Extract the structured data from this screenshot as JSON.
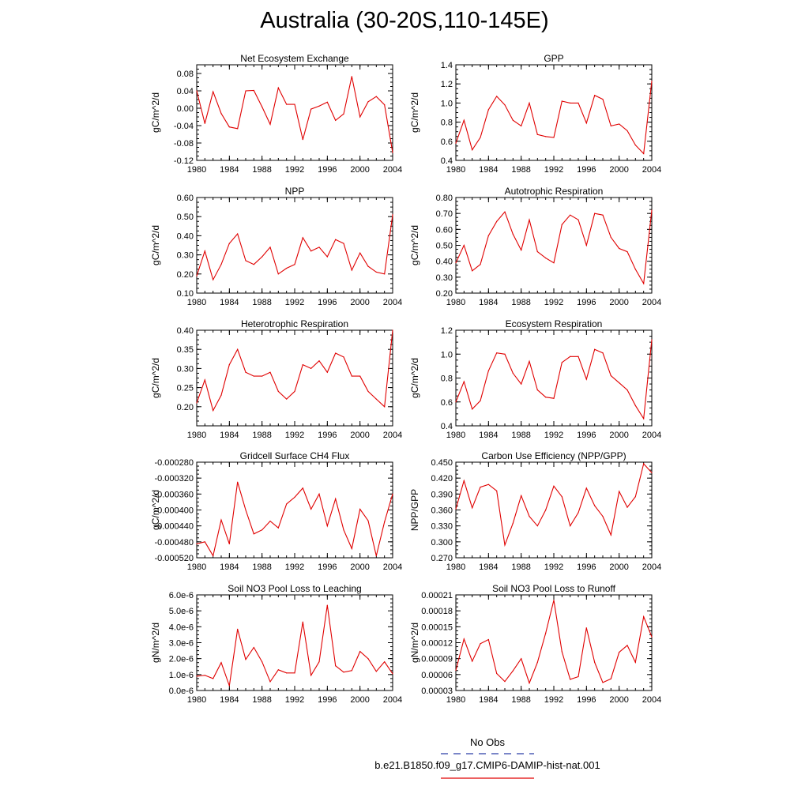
{
  "title": "Australia (30-20S,110-145E)",
  "legend": [
    {
      "label": "No Obs",
      "color": "#2a3fa8",
      "style": "dashed"
    },
    {
      "label": "b.e21.B1850.f09_g17.CMIP6-DAMIP-hist-nat.001",
      "color": "#e00000",
      "style": "solid"
    }
  ],
  "chart_data": [
    {
      "type": "line",
      "title": "Net Ecosystem Exchange",
      "ylabel": "gC/m^2/d",
      "x": [
        1980,
        1981,
        1982,
        1983,
        1984,
        1985,
        1986,
        1987,
        1988,
        1989,
        1990,
        1991,
        1992,
        1993,
        1994,
        1995,
        1996,
        1997,
        1998,
        1999,
        2000,
        2001,
        2002,
        2003,
        2004
      ],
      "ylim": [
        -0.12,
        0.1
      ],
      "yticks": [
        "0.08",
        "0.04",
        "0.00",
        "-0.04",
        "-0.08",
        "-0.12"
      ],
      "ytickvals": [
        0.08,
        0.04,
        0.0,
        -0.04,
        -0.08,
        -0.12
      ],
      "xticks": [
        1980,
        1984,
        1988,
        1992,
        1996,
        2000,
        2004
      ],
      "series": [
        {
          "color": "#e00000",
          "values": [
            0.04,
            -0.035,
            0.038,
            -0.012,
            -0.043,
            -0.047,
            0.04,
            0.041,
            0.003,
            -0.037,
            0.047,
            0.009,
            0.009,
            -0.072,
            -0.002,
            0.005,
            0.014,
            -0.028,
            -0.013,
            0.073,
            -0.02,
            0.015,
            0.027,
            0.008,
            -0.102
          ]
        }
      ]
    },
    {
      "type": "line",
      "title": "GPP",
      "ylabel": "gC/m^2/d",
      "x": [
        1980,
        1981,
        1982,
        1983,
        1984,
        1985,
        1986,
        1987,
        1988,
        1989,
        1990,
        1991,
        1992,
        1993,
        1994,
        1995,
        1996,
        1997,
        1998,
        1999,
        2000,
        2001,
        2002,
        2003,
        2004
      ],
      "ylim": [
        0.4,
        1.4
      ],
      "yticks": [
        "1.4",
        "1.2",
        "1.0",
        "0.8",
        "0.6",
        "0.4"
      ],
      "ytickvals": [
        1.4,
        1.2,
        1.0,
        0.8,
        0.6,
        0.4
      ],
      "xticks": [
        1980,
        1984,
        1988,
        1992,
        1996,
        2000,
        2004
      ],
      "series": [
        {
          "color": "#e00000",
          "values": [
            0.58,
            0.82,
            0.51,
            0.64,
            0.93,
            1.07,
            0.98,
            0.82,
            0.76,
            1.0,
            0.67,
            0.65,
            0.64,
            1.02,
            1.0,
            1.0,
            0.79,
            1.08,
            1.04,
            0.76,
            0.78,
            0.71,
            0.56,
            0.47,
            1.23
          ]
        }
      ]
    },
    {
      "type": "line",
      "title": "NPP",
      "ylabel": "gC/m^2/d",
      "x": [
        1980,
        1981,
        1982,
        1983,
        1984,
        1985,
        1986,
        1987,
        1988,
        1989,
        1990,
        1991,
        1992,
        1993,
        1994,
        1995,
        1996,
        1997,
        1998,
        1999,
        2000,
        2001,
        2002,
        2003,
        2004
      ],
      "ylim": [
        0.1,
        0.6
      ],
      "yticks": [
        "0.60",
        "0.50",
        "0.40",
        "0.30",
        "0.20",
        "0.10"
      ],
      "ytickvals": [
        0.6,
        0.5,
        0.4,
        0.3,
        0.2,
        0.1
      ],
      "xticks": [
        1980,
        1984,
        1988,
        1992,
        1996,
        2000,
        2004
      ],
      "series": [
        {
          "color": "#e00000",
          "values": [
            0.19,
            0.32,
            0.17,
            0.25,
            0.36,
            0.41,
            0.27,
            0.25,
            0.29,
            0.34,
            0.2,
            0.23,
            0.25,
            0.39,
            0.32,
            0.34,
            0.29,
            0.38,
            0.36,
            0.22,
            0.31,
            0.24,
            0.21,
            0.2,
            0.51
          ]
        }
      ]
    },
    {
      "type": "line",
      "title": "Autotrophic Respiration",
      "ylabel": "gC/m^2/d",
      "x": [
        1980,
        1981,
        1982,
        1983,
        1984,
        1985,
        1986,
        1987,
        1988,
        1989,
        1990,
        1991,
        1992,
        1993,
        1994,
        1995,
        1996,
        1997,
        1998,
        1999,
        2000,
        2001,
        2002,
        2003,
        2004
      ],
      "ylim": [
        0.2,
        0.8
      ],
      "yticks": [
        "0.80",
        "0.70",
        "0.60",
        "0.50",
        "0.40",
        "0.30",
        "0.20"
      ],
      "ytickvals": [
        0.8,
        0.7,
        0.6,
        0.5,
        0.4,
        0.3,
        0.2
      ],
      "xticks": [
        1980,
        1984,
        1988,
        1992,
        1996,
        2000,
        2004
      ],
      "series": [
        {
          "color": "#e00000",
          "values": [
            0.39,
            0.5,
            0.34,
            0.38,
            0.56,
            0.65,
            0.71,
            0.57,
            0.47,
            0.66,
            0.46,
            0.42,
            0.39,
            0.63,
            0.69,
            0.66,
            0.5,
            0.7,
            0.69,
            0.55,
            0.48,
            0.46,
            0.35,
            0.26,
            0.72
          ]
        }
      ]
    },
    {
      "type": "line",
      "title": "Heterotrophic Respiration",
      "ylabel": "gC/m^2/d",
      "x": [
        1980,
        1981,
        1982,
        1983,
        1984,
        1985,
        1986,
        1987,
        1988,
        1989,
        1990,
        1991,
        1992,
        1993,
        1994,
        1995,
        1996,
        1997,
        1998,
        1999,
        2000,
        2001,
        2002,
        2003,
        2004
      ],
      "ylim": [
        0.15,
        0.4
      ],
      "yticks": [
        "0.40",
        "0.35",
        "0.30",
        "0.25",
        "0.20"
      ],
      "ytickvals": [
        0.4,
        0.35,
        0.3,
        0.25,
        0.2
      ],
      "xticks": [
        1980,
        1984,
        1988,
        1992,
        1996,
        2000,
        2004
      ],
      "series": [
        {
          "color": "#e00000",
          "values": [
            0.21,
            0.27,
            0.19,
            0.23,
            0.31,
            0.35,
            0.29,
            0.28,
            0.28,
            0.29,
            0.24,
            0.22,
            0.24,
            0.31,
            0.3,
            0.32,
            0.29,
            0.34,
            0.33,
            0.28,
            0.28,
            0.24,
            0.22,
            0.2,
            0.4
          ]
        }
      ]
    },
    {
      "type": "line",
      "title": "Ecosystem Respiration",
      "ylabel": "gC/m^2/d",
      "x": [
        1980,
        1981,
        1982,
        1983,
        1984,
        1985,
        1986,
        1987,
        1988,
        1989,
        1990,
        1991,
        1992,
        1993,
        1994,
        1995,
        1996,
        1997,
        1998,
        1999,
        2000,
        2001,
        2002,
        2003,
        2004
      ],
      "ylim": [
        0.4,
        1.2
      ],
      "yticks": [
        "1.2",
        "1.0",
        "0.8",
        "0.6",
        "0.4"
      ],
      "ytickvals": [
        1.2,
        1.0,
        0.8,
        0.6,
        0.4
      ],
      "xticks": [
        1980,
        1984,
        1988,
        1992,
        1996,
        2000,
        2004
      ],
      "series": [
        {
          "color": "#e00000",
          "values": [
            0.6,
            0.77,
            0.54,
            0.61,
            0.86,
            1.01,
            1.0,
            0.84,
            0.75,
            0.94,
            0.7,
            0.64,
            0.63,
            0.93,
            0.98,
            0.98,
            0.79,
            1.04,
            1.01,
            0.82,
            0.76,
            0.7,
            0.57,
            0.46,
            1.12
          ]
        }
      ]
    },
    {
      "type": "line",
      "title": "Gridcell Surface CH4 Flux",
      "ylabel": "gC/m^2/d",
      "x": [
        1980,
        1981,
        1982,
        1983,
        1984,
        1985,
        1986,
        1987,
        1988,
        1989,
        1990,
        1991,
        1992,
        1993,
        1994,
        1995,
        1996,
        1997,
        1998,
        1999,
        2000,
        2001,
        2002,
        2003,
        2004
      ],
      "ylim": [
        -0.00052,
        -0.00028
      ],
      "yticks": [
        "-0.000280",
        "-0.000320",
        "-0.000360",
        "-0.000400",
        "-0.000440",
        "-0.000480",
        "-0.000520"
      ],
      "ytickvals": [
        -0.00028,
        -0.00032,
        -0.00036,
        -0.0004,
        -0.00044,
        -0.00048,
        -0.00052
      ],
      "xticks": [
        1980,
        1984,
        1988,
        1992,
        1996,
        2000,
        2004
      ],
      "series": [
        {
          "color": "#e00000",
          "values": [
            -0.000485,
            -0.00048,
            -0.000515,
            -0.000425,
            -0.000485,
            -0.00033,
            -0.0004,
            -0.00046,
            -0.00045,
            -0.000428,
            -0.000445,
            -0.000385,
            -0.000368,
            -0.000345,
            -0.000398,
            -0.00036,
            -0.00044,
            -0.000372,
            -0.00045,
            -0.000497,
            -0.000398,
            -0.000427,
            -0.000515,
            -0.00043,
            -0.00036
          ]
        }
      ]
    },
    {
      "type": "line",
      "title": "Carbon Use Efficiency (NPP/GPP)",
      "ylabel": "NPP/GPP",
      "x": [
        1980,
        1981,
        1982,
        1983,
        1984,
        1985,
        1986,
        1987,
        1988,
        1989,
        1990,
        1991,
        1992,
        1993,
        1994,
        1995,
        1996,
        1997,
        1998,
        1999,
        2000,
        2001,
        2002,
        2003,
        2004
      ],
      "ylim": [
        0.27,
        0.45
      ],
      "yticks": [
        "0.450",
        "0.420",
        "0.390",
        "0.360",
        "0.330",
        "0.300",
        "0.270"
      ],
      "ytickvals": [
        0.45,
        0.42,
        0.39,
        0.36,
        0.33,
        0.3,
        0.27
      ],
      "xticks": [
        1980,
        1984,
        1988,
        1992,
        1996,
        2000,
        2004
      ],
      "series": [
        {
          "color": "#e00000",
          "values": [
            0.362,
            0.415,
            0.364,
            0.403,
            0.408,
            0.396,
            0.294,
            0.335,
            0.387,
            0.348,
            0.33,
            0.36,
            0.405,
            0.385,
            0.33,
            0.355,
            0.401,
            0.368,
            0.348,
            0.313,
            0.395,
            0.365,
            0.385,
            0.447,
            0.43
          ]
        }
      ]
    },
    {
      "type": "line",
      "title": "Soil NO3 Pool Loss to Leaching",
      "ylabel": "gN/m^2/d",
      "x": [
        1980,
        1981,
        1982,
        1983,
        1984,
        1985,
        1986,
        1987,
        1988,
        1989,
        1990,
        1991,
        1992,
        1993,
        1994,
        1995,
        1996,
        1997,
        1998,
        1999,
        2000,
        2001,
        2002,
        2003,
        2004
      ],
      "ylim": [
        0.0,
        6e-06
      ],
      "yticks": [
        "6.0e-6",
        "5.0e-6",
        "4.0e-6",
        "3.0e-6",
        "2.0e-6",
        "1.0e-6",
        "0.0e-6"
      ],
      "ytickvals": [
        6e-06,
        5e-06,
        4e-06,
        3e-06,
        2e-06,
        1e-06,
        0.0
      ],
      "xticks": [
        1980,
        1984,
        1988,
        1992,
        1996,
        2000,
        2004
      ],
      "series": [
        {
          "color": "#e00000",
          "values": [
            9e-07,
            9.5e-07,
            7.5e-07,
            1.75e-06,
            3e-07,
            3.85e-06,
            1.95e-06,
            2.7e-06,
            1.8e-06,
            5.5e-07,
            1.3e-06,
            1.1e-06,
            1.1e-06,
            4.3e-06,
            9.5e-07,
            1.8e-06,
            5.35e-06,
            1.55e-06,
            1.15e-06,
            1.25e-06,
            2.45e-06,
            2e-06,
            1.2e-06,
            1.8e-06,
            1.05e-06
          ]
        }
      ]
    },
    {
      "type": "line",
      "title": "Soil NO3 Pool Loss to Runoff",
      "ylabel": "gN/m^2/d",
      "x": [
        1980,
        1981,
        1982,
        1983,
        1984,
        1985,
        1986,
        1987,
        1988,
        1989,
        1990,
        1991,
        1992,
        1993,
        1994,
        1995,
        1996,
        1997,
        1998,
        1999,
        2000,
        2001,
        2002,
        2003,
        2004
      ],
      "ylim": [
        3e-05,
        0.00021
      ],
      "yticks": [
        "0.00021",
        "0.00018",
        "0.00015",
        "0.00012",
        "0.00009",
        "0.00006",
        "0.00003"
      ],
      "ytickvals": [
        0.00021,
        0.00018,
        0.00015,
        0.00012,
        9e-05,
        6e-05,
        3e-05
      ],
      "xticks": [
        1980,
        1984,
        1988,
        1992,
        1996,
        2000,
        2004
      ],
      "series": [
        {
          "color": "#e00000",
          "values": [
            6.8e-05,
            0.000127,
            8.5e-05,
            0.000118,
            0.000126,
            6.2e-05,
            4.7e-05,
            6.7e-05,
            9e-05,
            4.4e-05,
            8.3e-05,
            0.000138,
            0.0002,
            0.000103,
            5.1e-05,
            5.6e-05,
            0.000148,
            8.3e-05,
            4.5e-05,
            5.2e-05,
            0.000102,
            0.000115,
            8.3e-05,
            0.000169,
            0.000131
          ]
        }
      ]
    }
  ]
}
